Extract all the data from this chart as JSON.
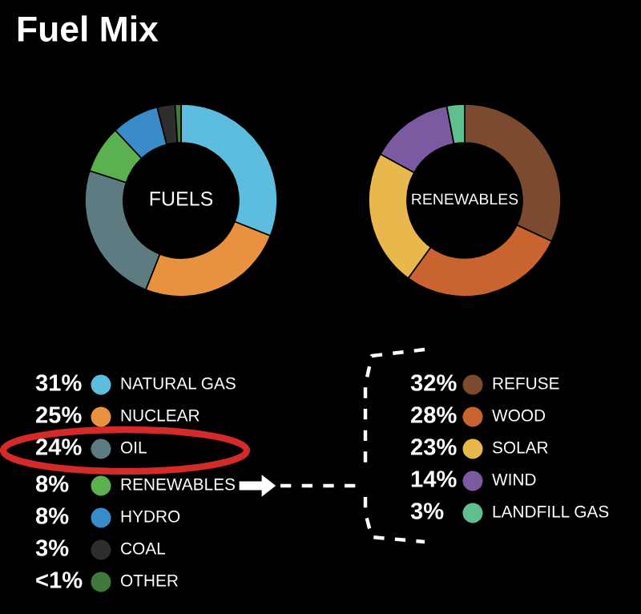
{
  "chart_data": [
    {
      "type": "donut",
      "title": "Fuel Mix",
      "annotations": [
        "FUELS"
      ],
      "legend": "bottom",
      "categories": [
        "NATURAL GAS",
        "NUCLEAR",
        "OIL",
        "RENEWABLES",
        "HYDRO",
        "COAL",
        "OTHER"
      ],
      "values": [
        31,
        25,
        24,
        8,
        8,
        3,
        1
      ],
      "value_labels": [
        "31%",
        "25%",
        "24%",
        "8%",
        "8%",
        "3%",
        "<1%"
      ],
      "colors": [
        "#5cbddf",
        "#e8913f",
        "#5f7b82",
        "#5bb04f",
        "#3a8bc9",
        "#2e2e2e",
        "#3f7a3b"
      ]
    },
    {
      "type": "donut",
      "annotations": [
        "RENEWABLES"
      ],
      "legend": "bottom",
      "categories": [
        "REFUSE",
        "WOOD",
        "SOLAR",
        "WIND",
        "LANDFILL GAS"
      ],
      "values": [
        32,
        28,
        23,
        14,
        3
      ],
      "value_labels": [
        "32%",
        "28%",
        "23%",
        "14%",
        "3%"
      ],
      "colors": [
        "#7c4a2f",
        "#c9632f",
        "#e8b84c",
        "#7c5aa1",
        "#5fbf8d"
      ]
    }
  ]
}
